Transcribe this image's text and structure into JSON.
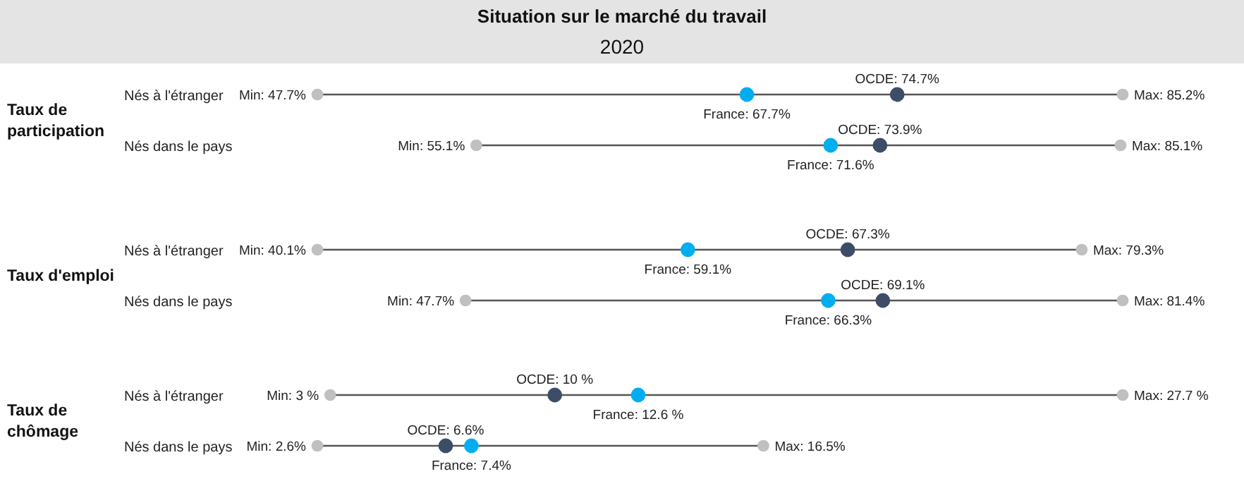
{
  "chart_data": [
    {
      "type": "other",
      "title": "Situation sur le marché du travail",
      "subtitle": "2020",
      "ylabel": "Taux de participation",
      "categories": [
        "Nés à l'étranger",
        "Nés dans le pays"
      ],
      "series": [
        {
          "color": "#c0c0c0",
          "values": [
            47.7,
            55.1
          ],
          "value_labels": [
            "Min: 47.7%",
            "Min: 55.1%"
          ]
        },
        {
          "color": "#c0c0c0",
          "values": [
            85.2,
            85.1
          ],
          "value_labels": [
            "Max: 85.2%",
            "Max: 85.1%"
          ]
        },
        {
          "color": "#3d4d68",
          "values": [
            74.7,
            73.9
          ],
          "value_labels": [
            "OCDE: 74.7%",
            "OCDE: 73.9%"
          ]
        },
        {
          "color": "#00aeef",
          "values": [
            67.7,
            71.6
          ],
          "value_labels": [
            "France: 67.7%",
            "France: 71.6%"
          ]
        }
      ]
    },
    {
      "type": "other",
      "ylabel": "Taux d'emploi",
      "categories": [
        "Nés à l'étranger",
        "Nés dans le pays"
      ],
      "series": [
        {
          "color": "#c0c0c0",
          "values": [
            40.1,
            47.7
          ],
          "value_labels": [
            "Min: 40.1%",
            "Min: 47.7%"
          ]
        },
        {
          "color": "#c0c0c0",
          "values": [
            79.3,
            81.4
          ],
          "value_labels": [
            "Max: 79.3%",
            "Max: 81.4%"
          ]
        },
        {
          "color": "#3d4d68",
          "values": [
            67.3,
            69.1
          ],
          "value_labels": [
            "OCDE: 67.3%",
            "OCDE: 69.1%"
          ]
        },
        {
          "color": "#00aeef",
          "values": [
            59.1,
            66.3
          ],
          "value_labels": [
            "France: 59.1%",
            "France: 66.3%"
          ]
        }
      ]
    },
    {
      "type": "other",
      "ylabel": "Taux de chômage",
      "categories": [
        "Nés à l'étranger",
        "Nés dans le pays"
      ],
      "series": [
        {
          "color": "#c0c0c0",
          "values": [
            3,
            2.6
          ],
          "value_labels": [
            "Min: 3 %",
            "Min: 2.6%"
          ]
        },
        {
          "color": "#c0c0c0",
          "values": [
            27.7,
            16.5
          ],
          "value_labels": [
            "Max: 27.7 %",
            "Max: 16.5%"
          ]
        },
        {
          "color": "#3d4d68",
          "values": [
            10,
            6.6
          ],
          "value_labels": [
            "OCDE: 10 %",
            "OCDE: 6.6%"
          ]
        },
        {
          "color": "#00aeef",
          "values": [
            12.6,
            7.4
          ],
          "value_labels": [
            "France: 12.6 %",
            "France: 7.4%"
          ]
        }
      ]
    }
  ]
}
